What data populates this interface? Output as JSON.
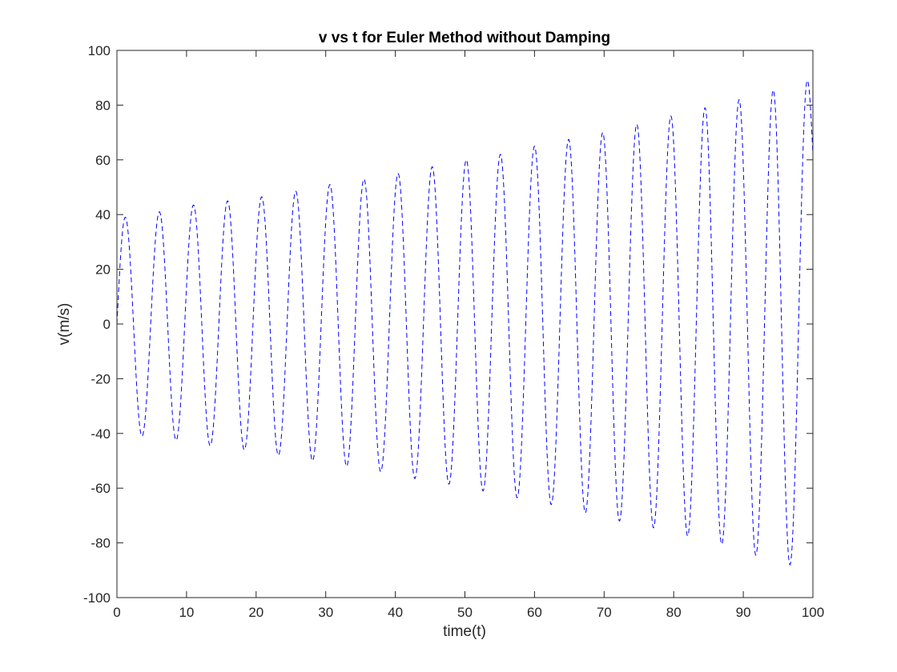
{
  "chart_data": {
    "type": "line",
    "title": "v vs t for Euler Method without Damping",
    "xlabel": "time(t)",
    "ylabel": "v(m/s)",
    "xlim": [
      0,
      100
    ],
    "ylim": [
      -100,
      100
    ],
    "x_ticks": [
      "0",
      "10",
      "20",
      "30",
      "40",
      "50",
      "60",
      "70",
      "80",
      "90",
      "100"
    ],
    "y_ticks": [
      "100",
      "80",
      "60",
      "40",
      "20",
      "0",
      "-20",
      "-40",
      "-60",
      "-80",
      "-100"
    ],
    "grid": false,
    "legend": "none",
    "series": [
      {
        "line_style": "dashed",
        "color": "#0000ff",
        "peaks": [
          {
            "t": 1.2,
            "v": 39
          },
          {
            "t": 6.1,
            "v": 41
          },
          {
            "t": 11.0,
            "v": 43.5
          },
          {
            "t": 15.9,
            "v": 45
          },
          {
            "t": 20.8,
            "v": 46.5
          },
          {
            "t": 25.7,
            "v": 48.5
          },
          {
            "t": 30.6,
            "v": 51
          },
          {
            "t": 35.5,
            "v": 53
          },
          {
            "t": 40.4,
            "v": 55
          },
          {
            "t": 45.3,
            "v": 57.5
          },
          {
            "t": 50.2,
            "v": 60
          },
          {
            "t": 55.1,
            "v": 62
          },
          {
            "t": 60.0,
            "v": 65
          },
          {
            "t": 64.9,
            "v": 67.5
          },
          {
            "t": 69.8,
            "v": 70
          },
          {
            "t": 74.7,
            "v": 73
          },
          {
            "t": 79.6,
            "v": 76
          },
          {
            "t": 84.5,
            "v": 79
          },
          {
            "t": 89.4,
            "v": 82
          },
          {
            "t": 94.3,
            "v": 85.5
          },
          {
            "t": 99.2,
            "v": 89
          }
        ],
        "troughs": [
          {
            "t": 3.6,
            "v": -41
          },
          {
            "t": 8.5,
            "v": -42.5
          },
          {
            "t": 13.4,
            "v": -44.5
          },
          {
            "t": 18.3,
            "v": -46
          },
          {
            "t": 23.2,
            "v": -48
          },
          {
            "t": 28.1,
            "v": -50
          },
          {
            "t": 33.0,
            "v": -52
          },
          {
            "t": 37.9,
            "v": -54
          },
          {
            "t": 42.8,
            "v": -56.5
          },
          {
            "t": 47.7,
            "v": -58.5
          },
          {
            "t": 52.6,
            "v": -61
          },
          {
            "t": 57.5,
            "v": -63.5
          },
          {
            "t": 62.4,
            "v": -66
          },
          {
            "t": 67.3,
            "v": -69
          },
          {
            "t": 72.2,
            "v": -72
          },
          {
            "t": 77.1,
            "v": -74.5
          },
          {
            "t": 82.0,
            "v": -77.5
          },
          {
            "t": 86.9,
            "v": -80.5
          },
          {
            "t": 91.8,
            "v": -84.5
          },
          {
            "t": 96.7,
            "v": -88
          }
        ],
        "start": {
          "t": 0,
          "v": 0
        },
        "end": {
          "t": 100,
          "v": 62
        }
      }
    ]
  }
}
